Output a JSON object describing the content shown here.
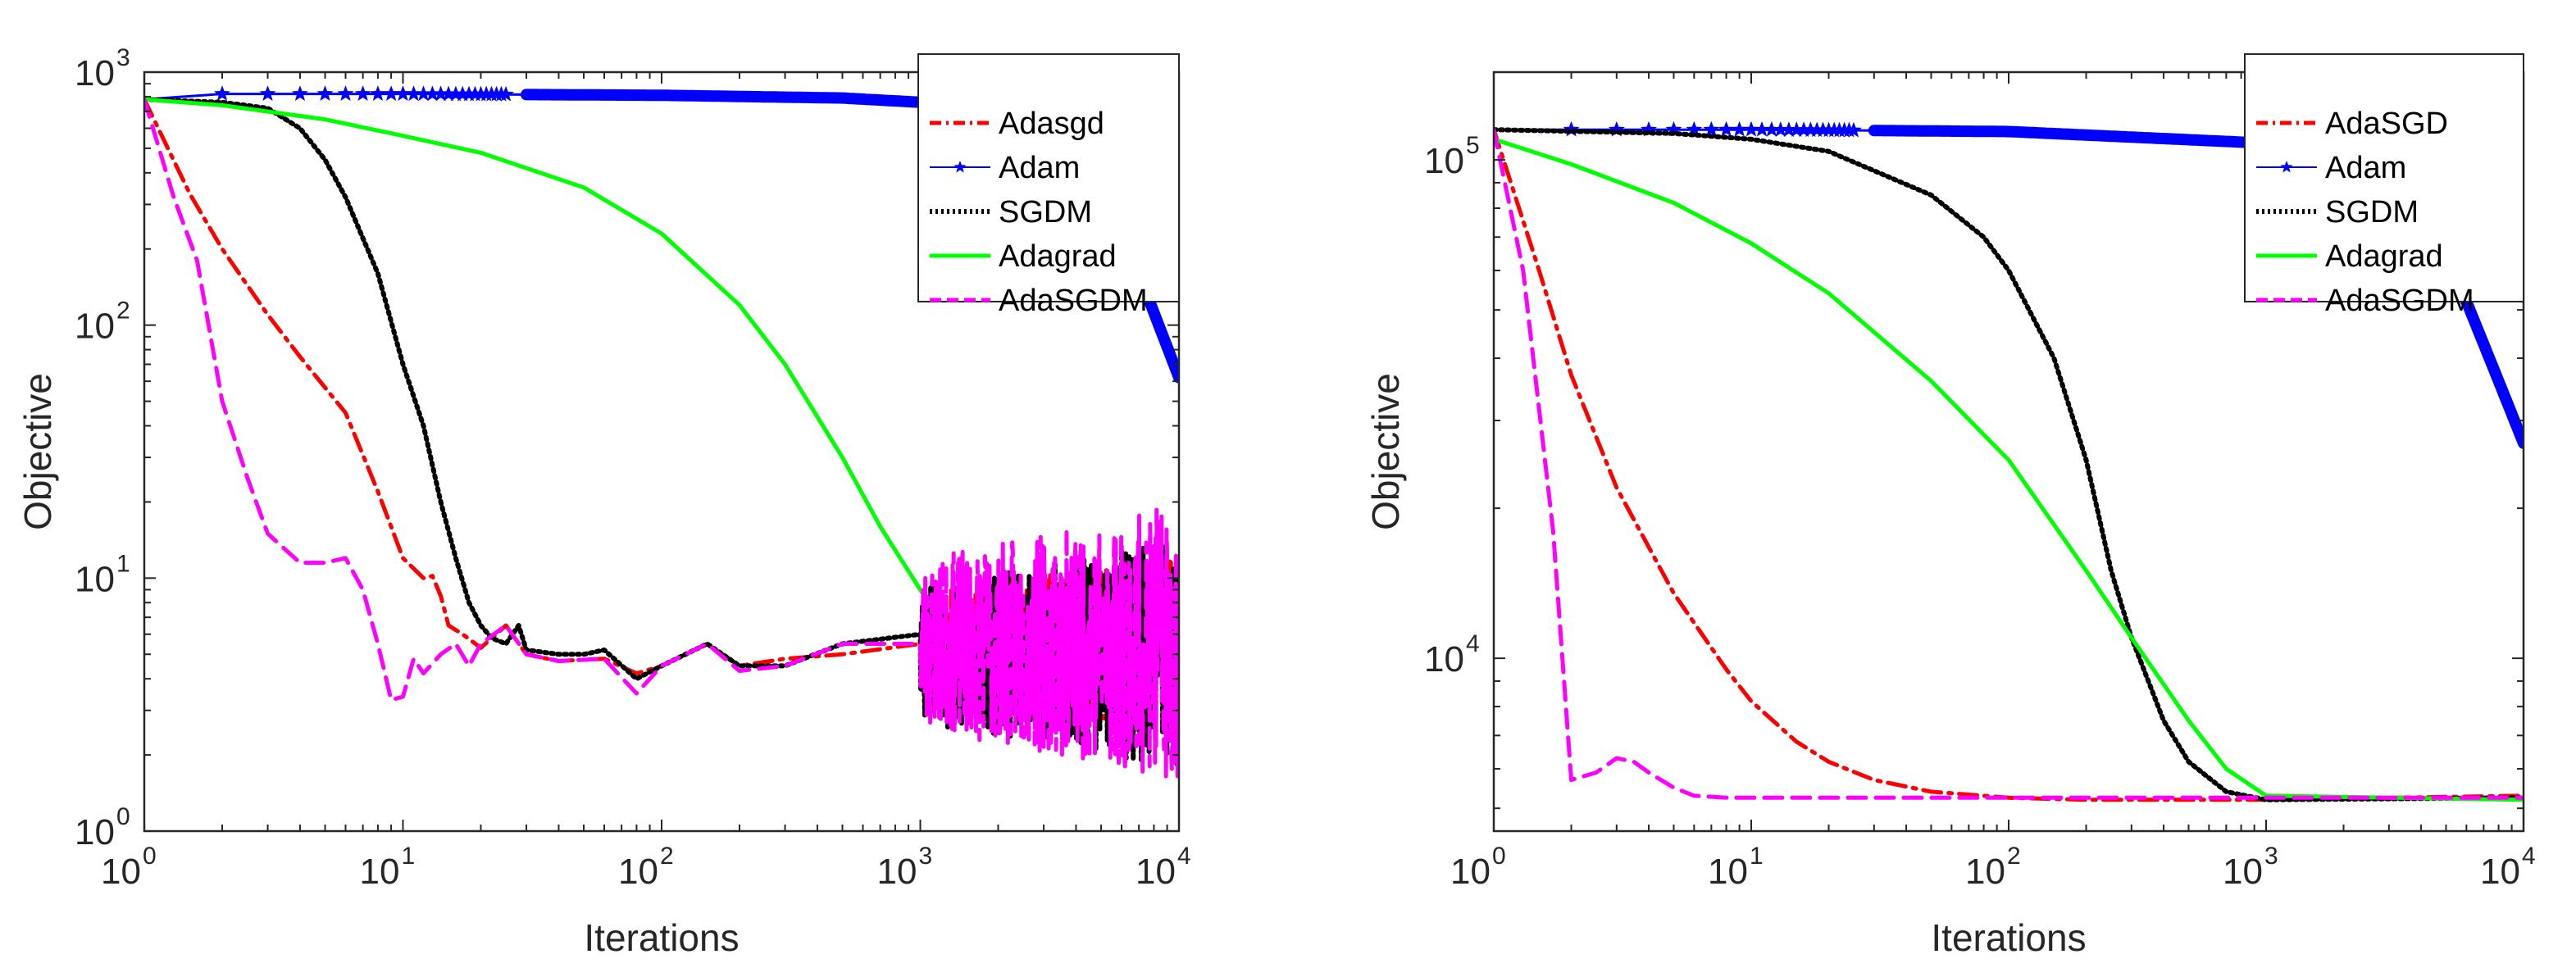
{
  "chart_data": [
    {
      "type": "line",
      "scale": "loglog",
      "xlabel": "Iterations",
      "ylabel": "Objective",
      "xlim": [
        1,
        10000
      ],
      "ylim": [
        1,
        1000
      ],
      "xticks": [
        {
          "value": 1,
          "base": "10",
          "exp": "0"
        },
        {
          "value": 10,
          "base": "10",
          "exp": "1"
        },
        {
          "value": 100,
          "base": "10",
          "exp": "2"
        },
        {
          "value": 1000,
          "base": "10",
          "exp": "3"
        },
        {
          "value": 10000,
          "base": "10",
          "exp": "4"
        }
      ],
      "yticks": [
        {
          "value": 1,
          "base": "10",
          "exp": "0"
        },
        {
          "value": 10,
          "base": "10",
          "exp": "1"
        },
        {
          "value": 100,
          "base": "10",
          "exp": "2"
        },
        {
          "value": 1000,
          "base": "10",
          "exp": "3"
        }
      ],
      "legend_position": "top-right",
      "series": [
        {
          "name": "Adasgd",
          "color": "#ff0000",
          "dash": "dashdot",
          "marker": "none",
          "x": [
            1,
            1.5,
            2,
            3,
            4,
            6,
            8,
            10,
            12,
            13,
            14,
            15,
            17,
            20,
            25,
            30,
            40,
            60,
            80,
            100,
            150,
            200,
            300,
            500,
            1000
          ],
          "y": [
            780,
            330,
            200,
            110,
            75,
            45,
            22,
            12,
            10,
            10.2,
            8.5,
            6.5,
            6,
            5.3,
            6.5,
            5,
            4.7,
            4.8,
            4.2,
            4.5,
            5.5,
            4.5,
            4.8,
            5,
            5.5
          ],
          "noise": {
            "from": 1000,
            "to": 10000,
            "center": 5.5,
            "amp": 0.35,
            "seed": 11
          }
        },
        {
          "name": "Adam",
          "color": "#0000ff",
          "dash": "solid",
          "marker": "star",
          "markers_x": [
            2,
            3,
            4,
            5,
            6,
            7,
            8,
            9,
            10,
            11,
            12,
            13,
            14,
            15,
            16,
            17,
            18,
            19,
            20,
            21,
            22,
            23,
            24,
            25
          ],
          "x": [
            1,
            2,
            3,
            10,
            100,
            500,
            1000,
            2000,
            3000,
            5000,
            7000,
            10000
          ],
          "y": [
            780,
            820,
            820,
            820,
            810,
            790,
            760,
            690,
            600,
            380,
            160,
            62
          ]
        },
        {
          "name": "SGDM",
          "color": "#000000",
          "dash": "dotted",
          "marker": "none",
          "x": [
            1,
            2,
            3,
            4,
            5,
            6,
            8,
            10,
            12,
            14,
            16,
            18,
            20,
            22,
            25,
            28,
            30,
            40,
            50,
            60,
            80,
            100,
            150,
            200,
            300,
            500,
            1000
          ],
          "y": [
            780,
            760,
            720,
            600,
            450,
            320,
            160,
            70,
            40,
            20,
            12,
            8,
            6.5,
            5.8,
            5.5,
            6.5,
            5.2,
            5,
            5,
            5.2,
            4,
            4.5,
            5.5,
            4.5,
            4.5,
            5.5,
            6
          ],
          "noise": {
            "from": 1000,
            "to": 10000,
            "center": 5,
            "amp": 0.45,
            "seed": 5
          }
        },
        {
          "name": "Adagrad",
          "color": "#00ff00",
          "dash": "solid",
          "marker": "none",
          "x": [
            1,
            2,
            5,
            10,
            20,
            50,
            100,
            200,
            300,
            500,
            700,
            1000,
            1300
          ],
          "y": [
            780,
            740,
            650,
            560,
            480,
            350,
            230,
            120,
            70,
            30,
            16,
            9,
            6
          ]
        },
        {
          "name": "AdaSGDM",
          "color": "#ff00ff",
          "dash": "dashed",
          "marker": "none",
          "x": [
            1,
            1.3,
            1.6,
            2,
            2.5,
            3,
            3.5,
            4,
            5,
            6,
            7,
            8,
            9,
            10,
            11,
            12,
            14,
            16,
            18,
            20,
            25,
            30,
            40,
            60,
            80,
            100,
            150,
            200,
            300,
            500,
            1000
          ],
          "y": [
            780,
            320,
            180,
            50,
            25,
            15,
            13,
            11.5,
            11.5,
            12,
            9,
            5.5,
            3.3,
            3.4,
            4.8,
            4.2,
            5,
            5.5,
            4.5,
            5.5,
            6.5,
            5,
            4.7,
            4.8,
            3.5,
            4.5,
            5.5,
            4.3,
            4.5,
            5.5,
            5.5
          ],
          "noise": {
            "from": 1000,
            "to": 10000,
            "center": 5.5,
            "amp": 0.55,
            "seed": 23
          }
        }
      ]
    },
    {
      "type": "line",
      "scale": "loglog",
      "xlabel": "Iterations",
      "ylabel": "Objective",
      "xlim": [
        1,
        10000
      ],
      "ylim": [
        4500,
        150000
      ],
      "xticks": [
        {
          "value": 1,
          "base": "10",
          "exp": "0"
        },
        {
          "value": 10,
          "base": "10",
          "exp": "1"
        },
        {
          "value": 100,
          "base": "10",
          "exp": "2"
        },
        {
          "value": 1000,
          "base": "10",
          "exp": "3"
        },
        {
          "value": 10000,
          "base": "10",
          "exp": "4"
        }
      ],
      "yticks": [
        {
          "value": 10000,
          "base": "10",
          "exp": "4"
        },
        {
          "value": 100000,
          "base": "10",
          "exp": "5"
        }
      ],
      "legend_position": "top-right",
      "series": [
        {
          "name": "AdaSGD",
          "color": "#ff0000",
          "dash": "dashdot",
          "marker": "none",
          "x": [
            1,
            1.5,
            2,
            3,
            5,
            8,
            10,
            15,
            20,
            30,
            50,
            100,
            200,
            1000,
            10000
          ],
          "y": [
            115000,
            60000,
            37000,
            22000,
            13500,
            9500,
            8200,
            6800,
            6200,
            5700,
            5400,
            5250,
            5200,
            5200,
            5300
          ]
        },
        {
          "name": "Adam",
          "color": "#0000ff",
          "dash": "solid",
          "marker": "star",
          "markers_x": [
            2,
            3,
            4,
            5,
            6,
            7,
            8,
            9,
            10,
            11,
            12,
            13,
            14,
            15,
            16,
            17,
            18,
            19,
            20,
            21,
            22,
            23,
            24,
            25
          ],
          "x": [
            1,
            10,
            100,
            1000,
            2000,
            4000,
            6000,
            8000,
            10000
          ],
          "y": [
            115000,
            115000,
            114000,
            108000,
            98000,
            72000,
            52000,
            36000,
            27000
          ]
        },
        {
          "name": "SGDM",
          "color": "#000000",
          "dash": "dotted",
          "marker": "none",
          "x": [
            1,
            5,
            10,
            20,
            50,
            80,
            100,
            150,
            200,
            250,
            300,
            400,
            500,
            700,
            1000,
            10000
          ],
          "y": [
            115000,
            113000,
            110000,
            104000,
            85000,
            70000,
            60000,
            40000,
            25000,
            15000,
            11000,
            7500,
            6200,
            5400,
            5200,
            5250
          ]
        },
        {
          "name": "Adagrad",
          "color": "#00ff00",
          "dash": "solid",
          "marker": "none",
          "x": [
            1,
            2,
            5,
            10,
            20,
            50,
            100,
            200,
            300,
            500,
            700,
            1000,
            10000
          ],
          "y": [
            110000,
            98000,
            82000,
            68000,
            54000,
            36000,
            25000,
            15000,
            11000,
            7500,
            6000,
            5300,
            5200
          ]
        },
        {
          "name": "AdaSGDM",
          "color": "#ff00ff",
          "dash": "dashed",
          "marker": "none",
          "x": [
            1,
            1.3,
            1.7,
            2,
            2.5,
            3,
            3.5,
            4,
            5,
            6,
            8,
            10,
            100,
            1000,
            10000
          ],
          "y": [
            115000,
            60000,
            18000,
            5700,
            5900,
            6300,
            6200,
            5900,
            5500,
            5300,
            5250,
            5250,
            5250,
            5250,
            5250
          ]
        }
      ]
    }
  ]
}
